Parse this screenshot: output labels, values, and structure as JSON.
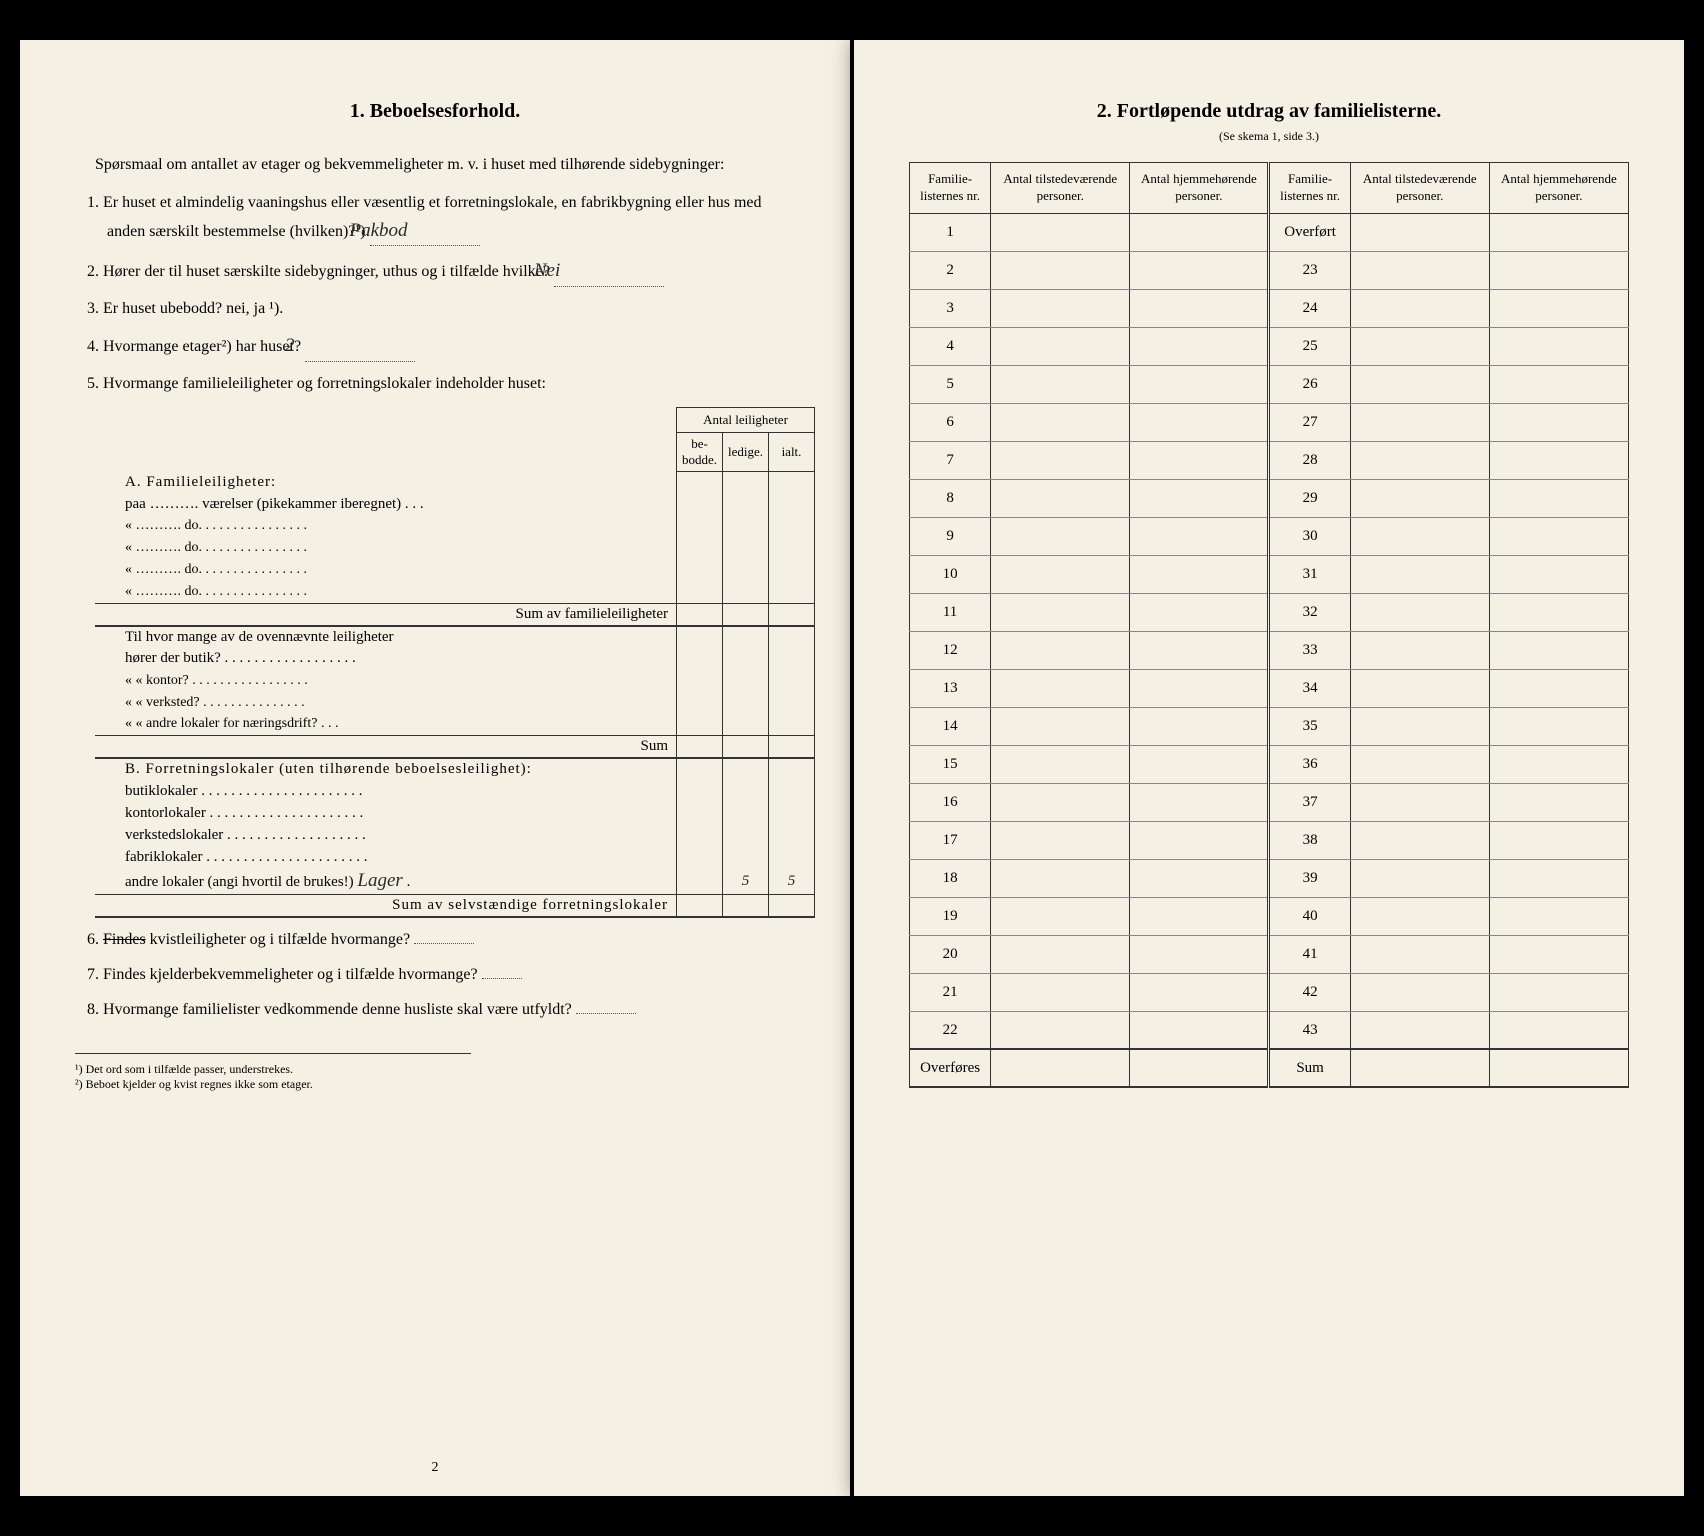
{
  "left": {
    "title": "1.   Beboelsesforhold.",
    "intro": "Spørsmaal om antallet av etager og bekvemmeligheter m. v. i huset med tilhørende sidebygninger:",
    "q1": "Er huset et almindelig vaaningshus eller væsentlig et forretningslokale, en fabrikbygning eller hus med anden særskilt bestemmelse (hvilken)?¹)",
    "q1_answer": "Pakbod",
    "q2": "Hører der til huset særskilte sidebygninger, uthus og i tilfælde hvilke?",
    "q2_answer": "Nei",
    "q3": "Er huset ubebodd?  nei,  ja ¹).",
    "q4": "Hvormange etager²) har huset?",
    "q4_answer": "2",
    "q5": "Hvormange familieleiligheter og forretningslokaler indeholder huset:",
    "leil_header": "Antal leiligheter",
    "leil_cols": [
      "be-\nbodde.",
      "ledige.",
      "ialt."
    ],
    "sectionA": "A. Familieleiligheter:",
    "a_rows": [
      "paa ………. værelser (pikekammer iberegnet) . . .",
      "«  ……….        do.        . . . . . . . . . . . . . . .",
      "«  ……….        do.        . . . . . . . . . . . . . . .",
      "«  ……….        do.        . . . . . . . . . . . . . . .",
      "«  ……….        do.        . . . . . . . . . . . . . . ."
    ],
    "sumA": "Sum av familieleiligheter",
    "midBlock": "Til hvor mange av de ovennævnte leiligheter",
    "mid_rows": [
      "hører der butik? . . . . . . . . . . . . . . . . . .",
      "«     «   kontor? . . . . . . . . . . . . . . . . .",
      "«     «   verksted? . . . . . . . . . . . . . . .",
      "«     «   andre lokaler for næringsdrift? . . ."
    ],
    "sumMid": "Sum",
    "sectionB": "B. Forretningslokaler (uten tilhørende beboelsesleilighet):",
    "b_rows": [
      "butiklokaler . . . . . . . . . . . . . . . . . . . . . .",
      "kontorlokaler . . . . . . . . . . . . . . . . . . . . .",
      "verkstedslokaler . . . . . . . . . . . . . . . . . . .",
      "fabriklokaler . . . . . . . . . . . . . . . . . . . . . ."
    ],
    "b_last": "andre lokaler (angi hvortil de brukes!)",
    "b_last_answer": "Lager",
    "b_last_vals": [
      "",
      "5",
      "5"
    ],
    "sumB": "Sum av selvstændige forretningslokaler",
    "q6": "Findes kvistleiligheter og i tilfælde hvormange?",
    "q7": "Findes kjelderbekvemmeligheter og i tilfælde hvormange?",
    "q8": "Hvormange familielister vedkommende denne husliste skal være utfyldt?",
    "fn1": "¹) Det ord som i tilfælde passer, understrekes.",
    "fn2": "²) Beboet kjelder og kvist regnes ikke som etager.",
    "pagenum": "2"
  },
  "right": {
    "title": "2.   Fortløpende utdrag av familielisterne.",
    "subtitle": "(Se skema 1, side 3.)",
    "headers": [
      "Familie-\nlisternes\nnr.",
      "Antal\ntilstedeværende\npersoner.",
      "Antal\nhjemmehørende\npersoner.",
      "Familie-\nlisternes\nnr.",
      "Antal\ntilstedeværende\npersoner.",
      "Antal\nhjemmehørende\npersoner."
    ],
    "left_nrs": [
      "1",
      "2",
      "3",
      "4",
      "5",
      "6",
      "7",
      "8",
      "9",
      "10",
      "11",
      "12",
      "13",
      "14",
      "15",
      "16",
      "17",
      "18",
      "19",
      "20",
      "21",
      "22"
    ],
    "right_first": "Overført",
    "right_nrs": [
      "23",
      "24",
      "25",
      "26",
      "27",
      "28",
      "29",
      "30",
      "31",
      "32",
      "33",
      "34",
      "35",
      "36",
      "37",
      "38",
      "39",
      "40",
      "41",
      "42",
      "43"
    ],
    "left_last": "Overføres",
    "right_last": "Sum"
  }
}
